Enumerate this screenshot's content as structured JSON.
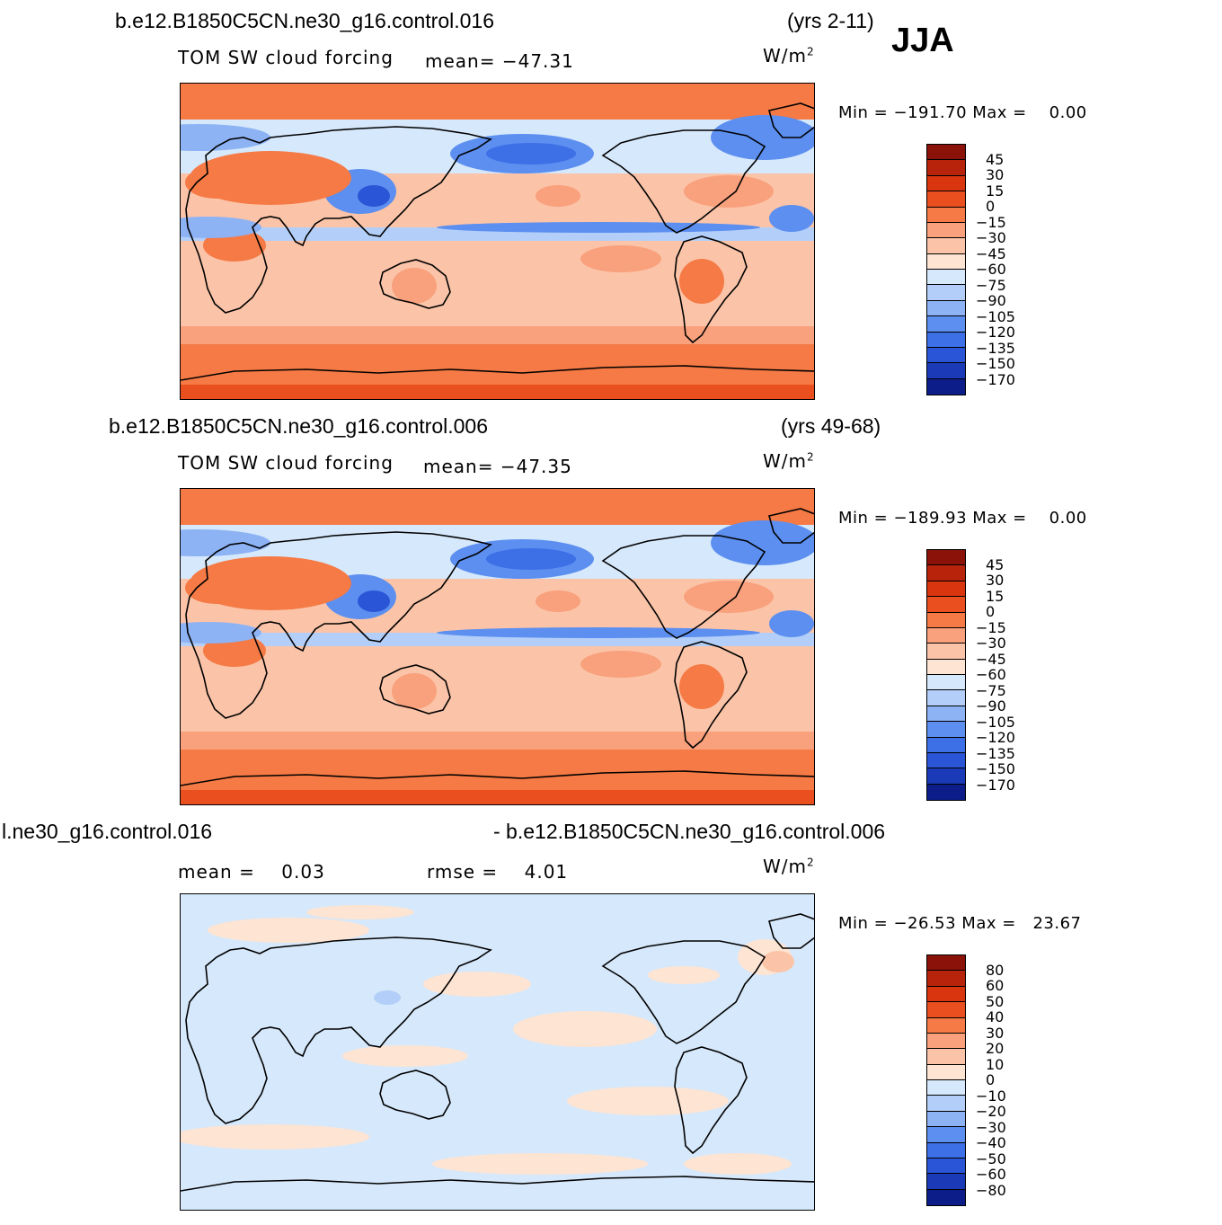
{
  "season": "JJA",
  "panels": [
    {
      "case": "b.e12.B1850C5CN.ne30_g16.control.016",
      "years": "(yrs 2-11)",
      "variable": "TOM SW cloud forcing",
      "stat1": "mean= −47.31",
      "stat2": "",
      "units": "W/m",
      "units_sup": "2",
      "minmax": "Min = −191.70 Max =    0.00",
      "legend": [
        "45",
        "30",
        "15",
        "0",
        "−15",
        "−30",
        "−45",
        "−60",
        "−75",
        "−90",
        "−105",
        "−120",
        "−135",
        "−150",
        "−170"
      ],
      "colors": [
        "#8a1208",
        "#b8230c",
        "#d9350f",
        "#ea4f1f",
        "#f57a45",
        "#f9a07c",
        "#fbc4a8",
        "#fde4d3",
        "#d6e8fb",
        "#b3cff9",
        "#8db3f5",
        "#5c8ff0",
        "#3d6fe6",
        "#2a55d6",
        "#1a3ab8",
        "#0c1c88"
      ]
    },
    {
      "case": "b.e12.B1850C5CN.ne30_g16.control.006",
      "years": "(yrs 49-68)",
      "variable": "TOM SW cloud forcing",
      "stat1": "mean= −47.35",
      "stat2": "",
      "units": "W/m",
      "units_sup": "2",
      "minmax": "Min = −189.93 Max =    0.00",
      "legend": [
        "45",
        "30",
        "15",
        "0",
        "−15",
        "−30",
        "−45",
        "−60",
        "−75",
        "−90",
        "−105",
        "−120",
        "−135",
        "−150",
        "−170"
      ],
      "colors": [
        "#8a1208",
        "#b8230c",
        "#d9350f",
        "#ea4f1f",
        "#f57a45",
        "#f9a07c",
        "#fbc4a8",
        "#fde4d3",
        "#d6e8fb",
        "#b3cff9",
        "#8db3f5",
        "#5c8ff0",
        "#3d6fe6",
        "#2a55d6",
        "#1a3ab8",
        "#0c1c88"
      ]
    },
    {
      "case": "l.ne30_g16.control.016",
      "years": "- b.e12.B1850C5CN.ne30_g16.control.006",
      "variable": "",
      "stat1": "mean =    0.03",
      "stat2": "rmse =    4.01",
      "units": "W/m",
      "units_sup": "2",
      "minmax": "Min = −26.53 Max =   23.67",
      "legend": [
        "80",
        "60",
        "50",
        "40",
        "30",
        "20",
        "10",
        "0",
        "−10",
        "−20",
        "−30",
        "−40",
        "−50",
        "−60",
        "−80"
      ],
      "colors": [
        "#8a1208",
        "#b8230c",
        "#d9350f",
        "#ea4f1f",
        "#f57a45",
        "#f9a07c",
        "#fbc4a8",
        "#fde4d3",
        "#d6e8fb",
        "#b3cff9",
        "#8db3f5",
        "#5c8ff0",
        "#3d6fe6",
        "#2a55d6",
        "#1a3ab8",
        "#0c1c88"
      ]
    }
  ]
}
